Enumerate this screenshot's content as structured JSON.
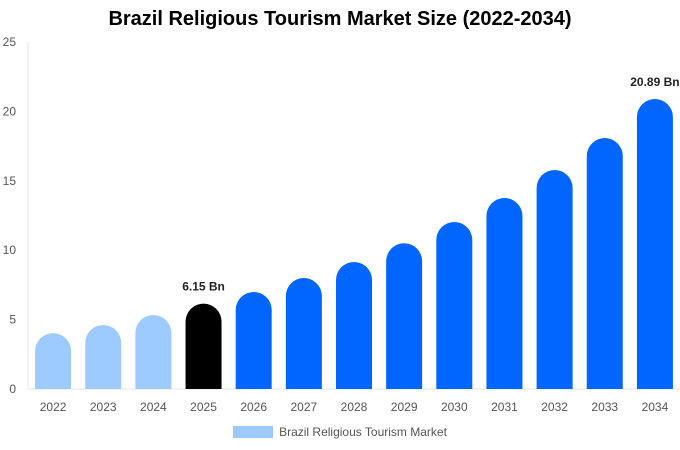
{
  "chart_data": {
    "type": "bar",
    "title": "Brazil Religious Tourism Market Size (2022-2034)",
    "categories": [
      "2022",
      "2023",
      "2024",
      "2025",
      "2026",
      "2027",
      "2028",
      "2029",
      "2030",
      "2031",
      "2032",
      "2033",
      "2034"
    ],
    "series": [
      {
        "name": "Brazil Religious Tourism Market",
        "values": [
          4.03,
          4.61,
          5.33,
          6.15,
          6.99,
          8.0,
          9.15,
          10.5,
          12.03,
          13.76,
          15.78,
          18.08,
          20.89
        ]
      }
    ],
    "data_labels": {
      "3": "6.15 Bn",
      "12": "20.89 Bn"
    },
    "ylim": [
      0,
      25
    ],
    "yticks": [
      0,
      5,
      10,
      15,
      20,
      25
    ],
    "xlabel": "",
    "ylabel": "",
    "grid": false,
    "legend_position": "bottom",
    "colors": {
      "historical": "#9ecbff",
      "base_year": "#000000",
      "forecast": "#0066ff"
    }
  }
}
